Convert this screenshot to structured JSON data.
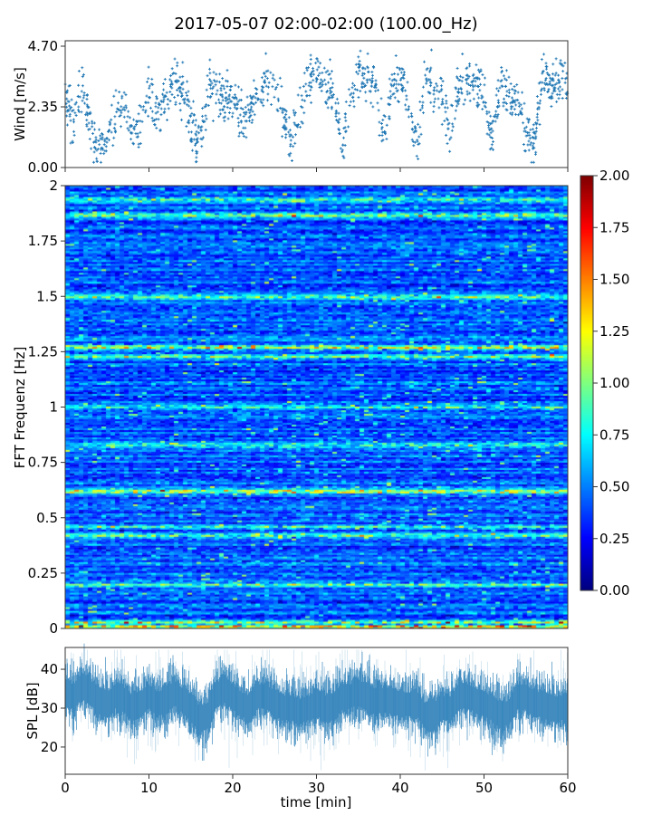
{
  "title": "2017-05-07 02:00-02:00 (100.00_Hz)",
  "chart_data": [
    {
      "type": "scatter",
      "panel": "wind",
      "ylabel": "Wind [m/s]",
      "xlim": [
        0,
        60
      ],
      "ylim": [
        0,
        4.91
      ],
      "yticks": [
        "0.00",
        "2.35",
        "4.70"
      ],
      "ytick_values": [
        0,
        2.35,
        4.7
      ],
      "marker": "+",
      "color": "#1f77b4",
      "x_minutes": [
        0,
        1,
        2,
        3,
        4,
        5,
        6,
        7,
        8,
        9,
        10,
        11,
        12,
        13,
        14,
        15,
        16,
        17,
        18,
        19,
        20,
        21,
        22,
        23,
        24,
        25,
        26,
        27,
        28,
        29,
        30,
        31,
        32,
        33,
        34,
        35,
        36,
        37,
        38,
        39,
        40,
        41,
        42,
        43,
        44,
        45,
        46,
        47,
        48,
        49,
        50,
        51,
        52,
        53,
        54,
        55,
        56,
        57,
        58,
        59,
        60
      ],
      "wind_mean": [
        3.0,
        1.5,
        3.2,
        1.5,
        0.8,
        1.0,
        2.0,
        2.7,
        1.2,
        1.5,
        2.8,
        2.0,
        2.5,
        3.3,
        3.0,
        1.8,
        1.0,
        2.8,
        3.0,
        2.7,
        2.8,
        1.8,
        2.2,
        3.0,
        3.3,
        3.0,
        2.0,
        1.0,
        2.0,
        3.5,
        3.7,
        3.2,
        3.0,
        0.8,
        2.5,
        3.6,
        3.5,
        3.3,
        1.2,
        3.0,
        3.5,
        2.5,
        0.7,
        3.6,
        3.2,
        2.8,
        1.5,
        3.3,
        3.4,
        3.2,
        3.0,
        1.2,
        3.4,
        2.8,
        2.7,
        1.5,
        0.8,
        3.9,
        3.0,
        3.3,
        3.3
      ]
    },
    {
      "type": "heatmap",
      "panel": "spectrogram",
      "ylabel": "FFT Frequenz [Hz]",
      "xlim": [
        0,
        60
      ],
      "ylim": [
        0,
        2
      ],
      "yticks": [
        "0",
        "0.25",
        "0.5",
        "0.75",
        "1",
        "1.25",
        "1.5",
        "1.75",
        "2"
      ],
      "ytick_values": [
        0,
        0.25,
        0.5,
        0.75,
        1,
        1.25,
        1.5,
        1.75,
        2
      ],
      "colormap": "jet",
      "clim": [
        0,
        2
      ],
      "colorbar_ticks": [
        "0.00",
        "0.25",
        "0.50",
        "0.75",
        "1.00",
        "1.25",
        "1.50",
        "1.75",
        "2.00"
      ],
      "colorbar_tick_values": [
        0,
        0.25,
        0.5,
        0.75,
        1,
        1.25,
        1.5,
        1.75,
        2
      ],
      "background_level": 0.3,
      "bands": [
        {
          "freq": 0.01,
          "level": 1.2
        },
        {
          "freq": 0.03,
          "level": 0.9
        },
        {
          "freq": 0.2,
          "level": 0.6
        },
        {
          "freq": 0.42,
          "level": 0.75
        },
        {
          "freq": 0.46,
          "level": 0.7
        },
        {
          "freq": 0.62,
          "level": 1.0
        },
        {
          "freq": 0.83,
          "level": 0.6
        },
        {
          "freq": 1.0,
          "level": 0.55
        },
        {
          "freq": 1.23,
          "level": 0.8
        },
        {
          "freq": 1.27,
          "level": 1.1
        },
        {
          "freq": 1.5,
          "level": 0.65
        },
        {
          "freq": 1.87,
          "level": 0.9
        },
        {
          "freq": 1.94,
          "level": 0.7
        }
      ]
    },
    {
      "type": "line",
      "panel": "spl",
      "ylabel": "SPL [dB]",
      "xlabel": "time [min]",
      "xlim": [
        0,
        60
      ],
      "ylim": [
        13,
        45.6
      ],
      "yticks": [
        "20",
        "30",
        "40"
      ],
      "ytick_values": [
        20,
        30,
        40
      ],
      "xticks": [
        "0",
        "10",
        "20",
        "30",
        "40",
        "50",
        "60"
      ],
      "xtick_values": [
        0,
        10,
        20,
        30,
        40,
        50,
        60
      ],
      "color": "#1f77b4",
      "x_minutes": [
        0,
        1,
        2,
        3,
        4,
        5,
        6,
        7,
        8,
        9,
        10,
        11,
        12,
        13,
        14,
        15,
        16,
        17,
        18,
        19,
        20,
        21,
        22,
        23,
        24,
        25,
        26,
        27,
        28,
        29,
        30,
        31,
        32,
        33,
        34,
        35,
        36,
        37,
        38,
        39,
        40,
        41,
        42,
        43,
        44,
        45,
        46,
        47,
        48,
        49,
        50,
        51,
        52,
        53,
        54,
        55,
        56,
        57,
        58,
        59,
        60
      ],
      "spl_mean": [
        34,
        33,
        36,
        34,
        32,
        31,
        33,
        32,
        30,
        31,
        33,
        31,
        32,
        34,
        32,
        30,
        27,
        28,
        33,
        35,
        33,
        31,
        30,
        33,
        33,
        31,
        30,
        30,
        29,
        30,
        31,
        30,
        30,
        33,
        33,
        34,
        33,
        32,
        32,
        32,
        31,
        31,
        31,
        28,
        28,
        30,
        30,
        33,
        33,
        32,
        31,
        30,
        28,
        29,
        33,
        33,
        31,
        31,
        30,
        30,
        30
      ]
    }
  ]
}
